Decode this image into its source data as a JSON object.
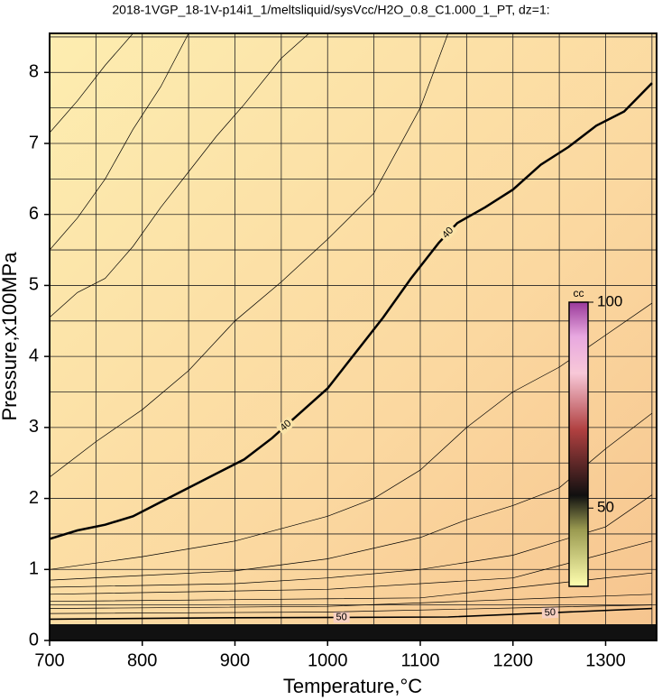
{
  "chart_data": {
    "type": "contour",
    "title": "2018-1VGP_18-1V-p14i1_1/meltsliquid/sysVcc/H2O_0.8_C1.000_1_PT, dz=1:",
    "x_label": "Temperature,°C",
    "y_label": "Pressure,x100MPa",
    "xlim": [
      700,
      1355
    ],
    "ylim": [
      0,
      8.55
    ],
    "xticks": [
      700,
      800,
      900,
      1000,
      1100,
      1200,
      1300
    ],
    "yticks": [
      0,
      1,
      2,
      3,
      4,
      5,
      6,
      7,
      8
    ],
    "xgrid": [
      750,
      800,
      850,
      900,
      950,
      1000,
      1050,
      1100,
      1150,
      1200,
      1250,
      1300,
      1350
    ],
    "ygrid": [
      0.5,
      1,
      1.5,
      2,
      2.5,
      3,
      3.5,
      4,
      4.5,
      5,
      5.5,
      6,
      6.5,
      7,
      7.5,
      8,
      8.5
    ],
    "contours": [
      {
        "level": 40,
        "x": [
          700,
          730,
          760,
          790,
          820,
          850,
          880,
          910,
          940,
          970,
          1000,
          1030,
          1060,
          1090,
          1120,
          1140,
          1170,
          1200,
          1230,
          1260,
          1290,
          1320,
          1350
        ],
        "y": [
          1.43,
          1.55,
          1.63,
          1.75,
          1.95,
          2.15,
          2.35,
          2.55,
          2.85,
          3.2,
          3.55,
          4.05,
          4.55,
          5.1,
          5.6,
          5.88,
          6.1,
          6.35,
          6.7,
          6.95,
          7.25,
          7.45,
          7.85
        ]
      },
      {
        "level": 50,
        "x": [
          700,
          900,
          1130,
          1350
        ],
        "y": [
          0.3,
          0.32,
          0.33,
          0.45
        ]
      },
      {
        "x": [
          700,
          730,
          760,
          790
        ],
        "y": [
          7.15,
          7.6,
          8.1,
          8.55
        ]
      },
      {
        "x": [
          700,
          730,
          760,
          790,
          820,
          850
        ],
        "y": [
          5.5,
          5.95,
          6.5,
          7.2,
          7.8,
          8.55
        ]
      },
      {
        "x": [
          700,
          730,
          760,
          790,
          820,
          850,
          880,
          910,
          950,
          980
        ],
        "y": [
          4.55,
          4.9,
          5.1,
          5.55,
          6.1,
          6.6,
          7.1,
          7.55,
          8.2,
          8.55
        ]
      },
      {
        "x": [
          700,
          750,
          800,
          850,
          900,
          950,
          1000,
          1050,
          1100,
          1130
        ],
        "y": [
          2.3,
          2.8,
          3.25,
          3.8,
          4.5,
          5.05,
          5.65,
          6.3,
          7.5,
          8.55
        ]
      },
      {
        "x": [
          700,
          800,
          900,
          1000,
          1050,
          1100,
          1150,
          1200,
          1250,
          1300,
          1350
        ],
        "y": [
          1.0,
          1.18,
          1.4,
          1.75,
          2.0,
          2.4,
          3.0,
          3.5,
          3.85,
          4.3,
          4.75
        ]
      },
      {
        "x": [
          700,
          900,
          1000,
          1100,
          1150,
          1200,
          1250,
          1300,
          1350
        ],
        "y": [
          0.85,
          0.98,
          1.15,
          1.45,
          1.7,
          1.9,
          2.15,
          2.7,
          3.2
        ]
      },
      {
        "x": [
          700,
          900,
          1000,
          1100,
          1200,
          1300,
          1350
        ],
        "y": [
          0.75,
          0.8,
          0.88,
          1.0,
          1.2,
          1.6,
          2.05
        ]
      },
      {
        "x": [
          700,
          1000,
          1200,
          1350
        ],
        "y": [
          0.65,
          0.72,
          0.88,
          1.4
        ]
      },
      {
        "x": [
          700,
          1100,
          1350
        ],
        "y": [
          0.55,
          0.6,
          0.95
        ]
      },
      {
        "x": [
          700,
          1000,
          1350
        ],
        "y": [
          0.45,
          0.48,
          0.65
        ]
      },
      {
        "x": [
          700,
          1000,
          1350
        ],
        "y": [
          0.38,
          0.4,
          0.5
        ]
      }
    ],
    "colorbar": {
      "label": "cc",
      "lim": [
        31,
        100
      ],
      "ticks": [
        50,
        100
      ]
    }
  }
}
